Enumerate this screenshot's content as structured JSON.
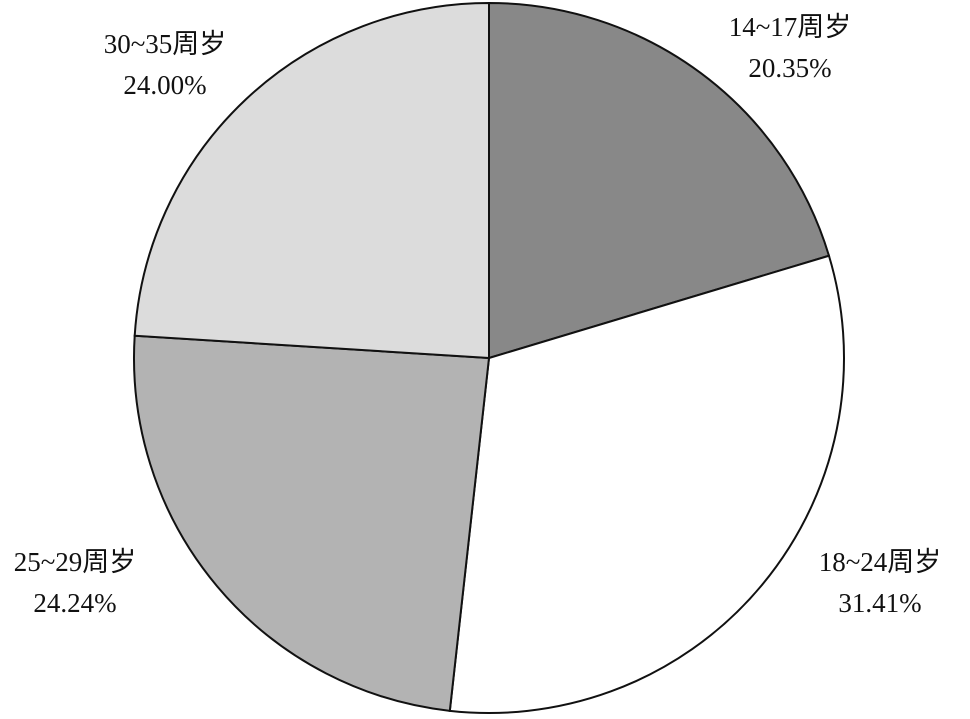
{
  "chart_data": {
    "type": "pie",
    "categories": [
      "14~17周岁",
      "18~24周岁",
      "25~29周岁",
      "30~35周岁"
    ],
    "values": [
      20.35,
      31.41,
      24.24,
      24.0
    ],
    "value_labels": [
      "20.35%",
      "31.41%",
      "24.24%",
      "24.00%"
    ],
    "colors": [
      "#888888",
      "#ffffff",
      "#b3b3b3",
      "#dcdcdc"
    ]
  }
}
